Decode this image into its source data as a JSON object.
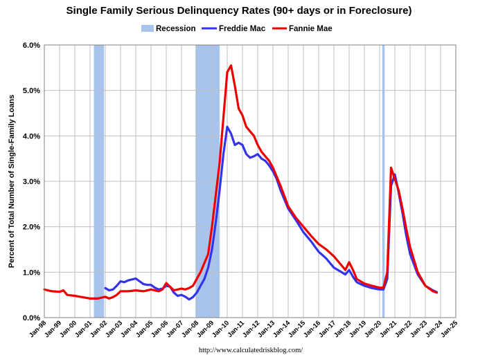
{
  "chart_data": {
    "type": "line",
    "title": "Single Family Serious Delinquency Rates (90+ days or in Foreclosure)",
    "ylabel": "Percent of Total Number of Single-Family Loans",
    "source": "http://www.calculatedriskblog.com/",
    "ylim": [
      0,
      6
    ],
    "xlim": [
      1998.0,
      2025.0
    ],
    "yticks": [
      "0.0%",
      "1.0%",
      "2.0%",
      "3.0%",
      "4.0%",
      "5.0%",
      "6.0%"
    ],
    "xticks": [
      "Jan-98",
      "Jan-99",
      "Jan-00",
      "Jan-01",
      "Jan-02",
      "Jan-03",
      "Jan-04",
      "Jan-05",
      "Jan-06",
      "Jan-07",
      "Jan-08",
      "Jan-09",
      "Jan-10",
      "Jan-11",
      "Jan-12",
      "Jan-13",
      "Jan-14",
      "Jan-15",
      "Jan-16",
      "Jan-17",
      "Jan-18",
      "Jan-19",
      "Jan-20",
      "Jan-21",
      "Jan-22",
      "Jan-23",
      "Jan-24",
      "Jan-25"
    ],
    "grid": true,
    "legend_position": "top",
    "recessions": [
      {
        "start": 2001.25,
        "end": 2001.92
      },
      {
        "start": 2007.92,
        "end": 2009.5
      },
      {
        "start": 2020.17,
        "end": 2020.33
      }
    ],
    "series": [
      {
        "name": "Recession",
        "color": "#a8c4ec",
        "kind": "band"
      },
      {
        "name": "Freddie Mac",
        "color": "#3333ee",
        "kind": "line",
        "x": [
          2002.0,
          2002.25,
          2002.5,
          2002.75,
          2003.0,
          2003.25,
          2003.5,
          2003.75,
          2004.0,
          2004.25,
          2004.5,
          2004.75,
          2005.0,
          2005.25,
          2005.5,
          2005.75,
          2006.0,
          2006.25,
          2006.5,
          2006.75,
          2007.0,
          2007.25,
          2007.5,
          2007.75,
          2008.0,
          2008.25,
          2008.5,
          2008.75,
          2009.0,
          2009.25,
          2009.5,
          2009.75,
          2010.0,
          2010.25,
          2010.5,
          2010.75,
          2011.0,
          2011.25,
          2011.5,
          2011.75,
          2012.0,
          2012.25,
          2012.5,
          2012.75,
          2013.0,
          2013.25,
          2013.5,
          2013.75,
          2014.0,
          2014.5,
          2015.0,
          2015.5,
          2016.0,
          2016.5,
          2017.0,
          2017.5,
          2017.75,
          2018.0,
          2018.25,
          2018.5,
          2019.0,
          2019.5,
          2020.0,
          2020.25,
          2020.5,
          2020.75,
          2021.0,
          2021.25,
          2021.5,
          2021.75,
          2022.0,
          2022.5,
          2023.0,
          2023.5,
          2023.75
        ],
        "y": [
          0.65,
          0.6,
          0.62,
          0.7,
          0.8,
          0.78,
          0.82,
          0.84,
          0.86,
          0.8,
          0.74,
          0.72,
          0.72,
          0.66,
          0.62,
          0.64,
          0.7,
          0.68,
          0.55,
          0.48,
          0.5,
          0.46,
          0.4,
          0.45,
          0.55,
          0.7,
          0.85,
          1.1,
          1.5,
          2.1,
          2.8,
          3.6,
          4.2,
          4.05,
          3.8,
          3.85,
          3.8,
          3.6,
          3.52,
          3.55,
          3.6,
          3.5,
          3.45,
          3.35,
          3.22,
          3.05,
          2.8,
          2.6,
          2.4,
          2.15,
          1.88,
          1.68,
          1.45,
          1.3,
          1.1,
          1.0,
          0.95,
          1.05,
          0.9,
          0.78,
          0.7,
          0.65,
          0.62,
          0.62,
          0.85,
          2.9,
          3.15,
          2.75,
          2.3,
          1.8,
          1.4,
          0.95,
          0.7,
          0.6,
          0.56
        ]
      },
      {
        "name": "Fannie Mae",
        "color": "#ee0000",
        "kind": "line",
        "x": [
          1998.0,
          1998.5,
          1999.0,
          1999.25,
          1999.5,
          2000.0,
          2000.5,
          2001.0,
          2001.5,
          2002.0,
          2002.25,
          2002.5,
          2002.75,
          2003.0,
          2003.5,
          2004.0,
          2004.5,
          2005.0,
          2005.25,
          2005.5,
          2005.75,
          2006.0,
          2006.25,
          2006.5,
          2006.75,
          2007.0,
          2007.25,
          2007.5,
          2007.75,
          2008.0,
          2008.25,
          2008.5,
          2008.75,
          2009.0,
          2009.25,
          2009.5,
          2009.75,
          2010.0,
          2010.25,
          2010.5,
          2010.75,
          2011.0,
          2011.25,
          2011.5,
          2011.75,
          2012.0,
          2012.25,
          2012.5,
          2012.75,
          2013.0,
          2013.5,
          2014.0,
          2014.5,
          2015.0,
          2015.5,
          2016.0,
          2016.5,
          2017.0,
          2017.5,
          2017.75,
          2018.0,
          2018.25,
          2018.5,
          2019.0,
          2019.5,
          2020.0,
          2020.25,
          2020.5,
          2020.75,
          2021.0,
          2021.25,
          2021.5,
          2021.75,
          2022.0,
          2022.5,
          2023.0,
          2023.5,
          2023.75
        ],
        "y": [
          0.62,
          0.58,
          0.57,
          0.6,
          0.5,
          0.48,
          0.45,
          0.42,
          0.42,
          0.46,
          0.42,
          0.45,
          0.5,
          0.58,
          0.58,
          0.6,
          0.58,
          0.62,
          0.6,
          0.58,
          0.62,
          0.76,
          0.68,
          0.6,
          0.62,
          0.64,
          0.62,
          0.65,
          0.7,
          0.85,
          1.0,
          1.2,
          1.4,
          2.0,
          2.7,
          3.4,
          4.4,
          5.4,
          5.55,
          5.1,
          4.6,
          4.45,
          4.2,
          4.1,
          4.0,
          3.8,
          3.65,
          3.55,
          3.45,
          3.3,
          2.9,
          2.45,
          2.2,
          2.0,
          1.8,
          1.62,
          1.5,
          1.35,
          1.15,
          1.05,
          1.22,
          1.05,
          0.85,
          0.75,
          0.7,
          0.66,
          0.66,
          1.0,
          3.3,
          3.05,
          2.8,
          2.4,
          1.95,
          1.55,
          1.0,
          0.7,
          0.58,
          0.55
        ]
      }
    ]
  }
}
